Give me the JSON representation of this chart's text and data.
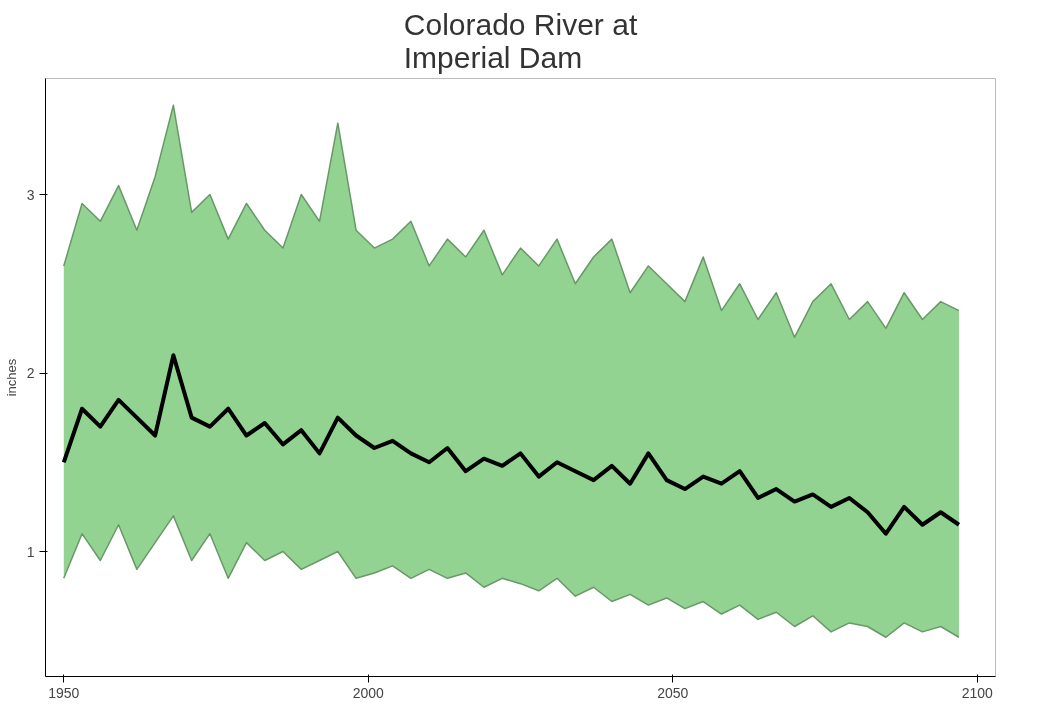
{
  "chart_data": {
    "type": "line",
    "title": "Colorado River at\nImperial Dam",
    "ylabel": "inches",
    "x": [
      1950,
      1953,
      1956,
      1959,
      1962,
      1965,
      1968,
      1971,
      1974,
      1977,
      1980,
      1983,
      1986,
      1989,
      1992,
      1995,
      1998,
      2001,
      2004,
      2007,
      2010,
      2013,
      2016,
      2019,
      2022,
      2025,
      2028,
      2031,
      2034,
      2037,
      2040,
      2043,
      2046,
      2049,
      2052,
      2055,
      2058,
      2061,
      2064,
      2067,
      2070,
      2073,
      2076,
      2079,
      2082,
      2085,
      2088,
      2091,
      2094,
      2097
    ],
    "series": [
      {
        "color": "#6a976a",
        "values": [
          0.85,
          1.1,
          0.95,
          1.15,
          0.9,
          1.05,
          1.2,
          0.95,
          1.1,
          0.85,
          1.05,
          0.95,
          1.0,
          0.9,
          0.95,
          1.0,
          0.85,
          0.88,
          0.92,
          0.85,
          0.9,
          0.85,
          0.88,
          0.8,
          0.85,
          0.82,
          0.78,
          0.85,
          0.75,
          0.8,
          0.72,
          0.76,
          0.7,
          0.74,
          0.68,
          0.72,
          0.65,
          0.7,
          0.62,
          0.66,
          0.58,
          0.64,
          0.55,
          0.6,
          0.58,
          0.52,
          0.6,
          0.55,
          0.58,
          0.52
        ]
      },
      {
        "type": "area",
        "color": "#6a976a",
        "values": [
          2.6,
          2.95,
          2.85,
          3.05,
          2.8,
          3.1,
          3.5,
          2.9,
          3.0,
          2.75,
          2.95,
          2.8,
          2.7,
          3.0,
          2.85,
          3.4,
          2.8,
          2.7,
          2.75,
          2.85,
          2.6,
          2.75,
          2.65,
          2.8,
          2.55,
          2.7,
          2.6,
          2.75,
          2.5,
          2.65,
          2.75,
          2.45,
          2.6,
          2.5,
          2.4,
          2.65,
          2.35,
          2.5,
          2.3,
          2.45,
          2.2,
          2.4,
          2.5,
          2.3,
          2.4,
          2.25,
          2.45,
          2.3,
          2.4,
          2.35
        ]
      },
      {
        "color": "#000000",
        "values": [
          1.5,
          1.8,
          1.7,
          1.85,
          1.75,
          1.65,
          2.1,
          1.75,
          1.7,
          1.8,
          1.65,
          1.72,
          1.6,
          1.68,
          1.55,
          1.75,
          1.65,
          1.58,
          1.62,
          1.55,
          1.5,
          1.58,
          1.45,
          1.52,
          1.48,
          1.55,
          1.42,
          1.5,
          1.45,
          1.4,
          1.48,
          1.38,
          1.55,
          1.4,
          1.35,
          1.42,
          1.38,
          1.45,
          1.3,
          1.35,
          1.28,
          1.32,
          1.25,
          1.3,
          1.22,
          1.1,
          1.25,
          1.15,
          1.22,
          1.15
        ]
      }
    ],
    "xlim": [
      1947,
      2103
    ],
    "ylim": [
      0.3,
      3.65
    ],
    "xticks": [
      1950,
      2000,
      2050,
      2100
    ],
    "yticks": [
      1,
      2,
      3
    ],
    "grid": false
  }
}
